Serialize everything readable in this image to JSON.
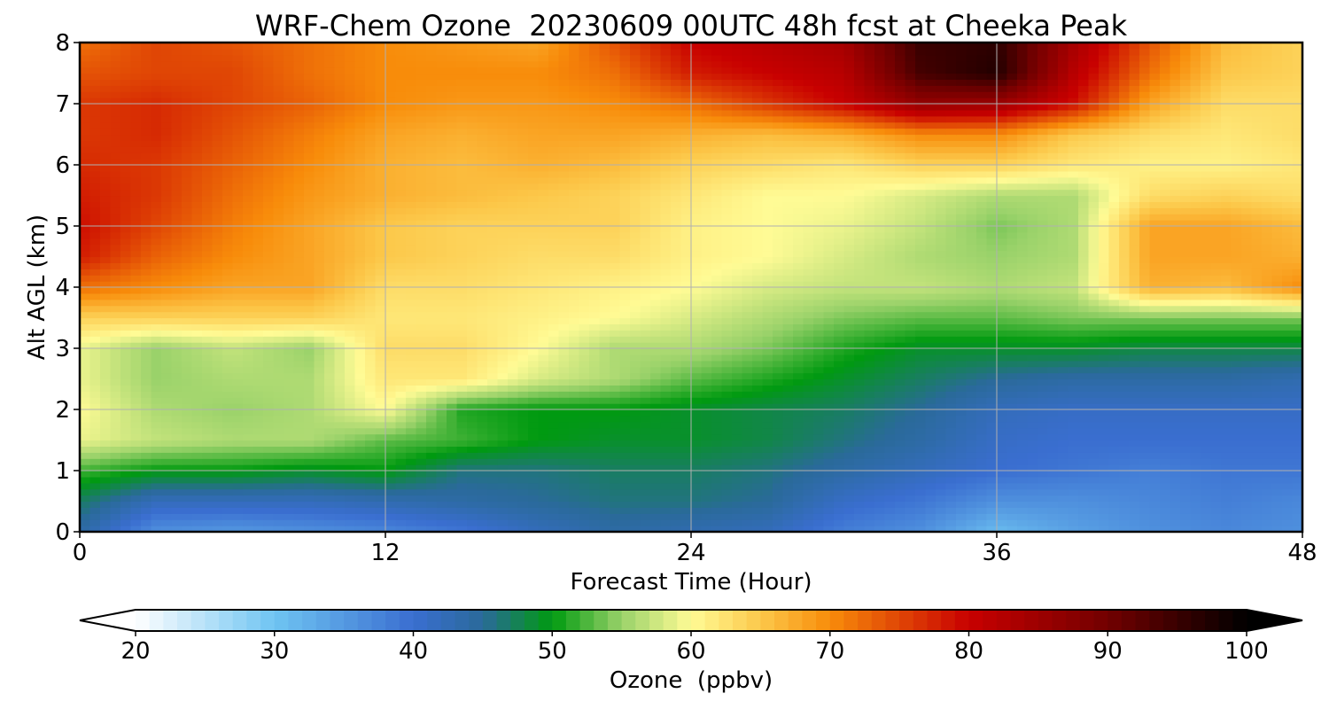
{
  "chart_data": {
    "type": "heatmap",
    "title": "WRF-Chem Ozone  20230609 00UTC 48h fcst at Cheeka Peak",
    "xlabel": "Forecast Time (Hour)",
    "ylabel": "Alt AGL (km)",
    "xlim": [
      0,
      48
    ],
    "ylim": [
      0,
      8
    ],
    "xticks": [
      0,
      12,
      24,
      36,
      48
    ],
    "yticks": [
      0,
      1,
      2,
      3,
      4,
      5,
      6,
      7,
      8
    ],
    "grid": true,
    "x": [
      0,
      3,
      6,
      9,
      12,
      15,
      18,
      21,
      24,
      27,
      30,
      33,
      36,
      39,
      42,
      45,
      48
    ],
    "y": [
      0,
      0.5,
      1,
      1.5,
      2,
      2.5,
      3,
      3.5,
      4,
      4.5,
      5,
      5.5,
      6,
      6.5,
      7,
      7.5,
      8
    ],
    "values": [
      [
        44,
        36,
        35,
        36,
        37,
        39,
        42,
        44,
        43,
        42,
        38,
        36,
        31,
        34,
        36,
        37,
        36
      ],
      [
        47,
        42,
        42,
        42,
        43,
        44,
        45,
        46,
        46,
        45,
        41,
        39,
        36,
        36,
        37,
        38,
        37
      ],
      [
        52,
        50,
        50,
        49,
        50,
        46,
        46,
        47,
        47,
        46,
        44,
        42,
        40,
        39,
        38,
        39,
        39
      ],
      [
        59,
        57,
        56,
        56,
        53,
        52,
        50,
        49,
        49,
        48,
        46,
        44,
        41,
        40,
        40,
        40,
        40
      ],
      [
        60,
        56,
        55,
        56,
        60,
        51,
        50,
        50,
        49,
        48,
        47,
        45,
        42,
        41,
        41,
        41,
        41
      ],
      [
        59,
        55,
        56,
        56,
        62,
        62,
        58,
        56,
        53,
        51,
        49,
        47,
        45,
        44,
        44,
        44,
        43
      ],
      [
        59,
        55,
        57,
        55,
        63,
        63,
        60,
        56,
        56,
        54,
        51,
        49,
        49,
        49,
        48,
        48,
        48
      ],
      [
        64,
        64,
        64,
        64,
        62,
        62,
        61,
        60,
        58,
        56,
        54,
        53,
        53,
        54,
        54,
        54,
        54
      ],
      [
        72,
        70,
        68,
        68,
        63,
        63,
        62,
        61,
        60,
        58,
        57,
        57,
        56,
        57,
        67,
        66,
        70
      ],
      [
        78,
        73,
        70,
        68,
        65,
        64,
        63,
        63,
        61,
        60,
        58,
        56,
        55,
        56,
        68,
        68,
        67
      ],
      [
        79,
        75,
        71,
        68,
        65,
        64,
        64,
        64,
        61,
        60,
        59,
        57,
        54,
        56,
        68,
        68,
        66
      ],
      [
        78,
        76,
        72,
        69,
        67,
        66,
        65,
        64,
        62,
        60,
        60,
        58,
        56,
        56,
        63,
        64,
        63
      ],
      [
        77,
        76,
        73,
        70,
        67,
        66,
        67,
        66,
        64,
        63,
        62,
        64,
        64,
        62,
        61,
        61,
        62
      ],
      [
        76,
        77,
        74,
        71,
        68,
        67,
        68,
        68,
        67,
        66,
        67,
        70,
        70,
        65,
        63,
        62,
        63
      ],
      [
        76,
        77,
        75,
        73,
        70,
        69,
        69,
        70,
        72,
        76,
        80,
        86,
        85,
        79,
        68,
        63,
        63
      ],
      [
        74,
        75,
        75,
        72,
        70,
        70,
        70,
        72,
        78,
        80,
        82,
        94,
        97,
        82,
        72,
        65,
        64
      ],
      [
        72,
        75,
        74,
        72,
        70,
        69,
        68,
        74,
        80,
        82,
        84,
        95,
        96,
        84,
        74,
        66,
        64
      ]
    ],
    "colorbar": {
      "label": "Ozone  (ppbv)",
      "min": 20,
      "max": 100,
      "ticks": [
        20,
        30,
        40,
        50,
        60,
        70,
        80,
        90,
        100
      ],
      "extend": "both",
      "stops": [
        {
          "v": 20,
          "c": "#ffffff"
        },
        {
          "v": 30,
          "c": "#6fc4f2"
        },
        {
          "v": 40,
          "c": "#3a6ed0"
        },
        {
          "v": 45,
          "c": "#2a6a9a"
        },
        {
          "v": 50,
          "c": "#009a10"
        },
        {
          "v": 55,
          "c": "#9ad26a"
        },
        {
          "v": 60,
          "c": "#fffb95"
        },
        {
          "v": 65,
          "c": "#fcc84a"
        },
        {
          "v": 70,
          "c": "#f88c0a"
        },
        {
          "v": 80,
          "c": "#c80000"
        },
        {
          "v": 90,
          "c": "#720000"
        },
        {
          "v": 100,
          "c": "#000000"
        }
      ]
    }
  }
}
